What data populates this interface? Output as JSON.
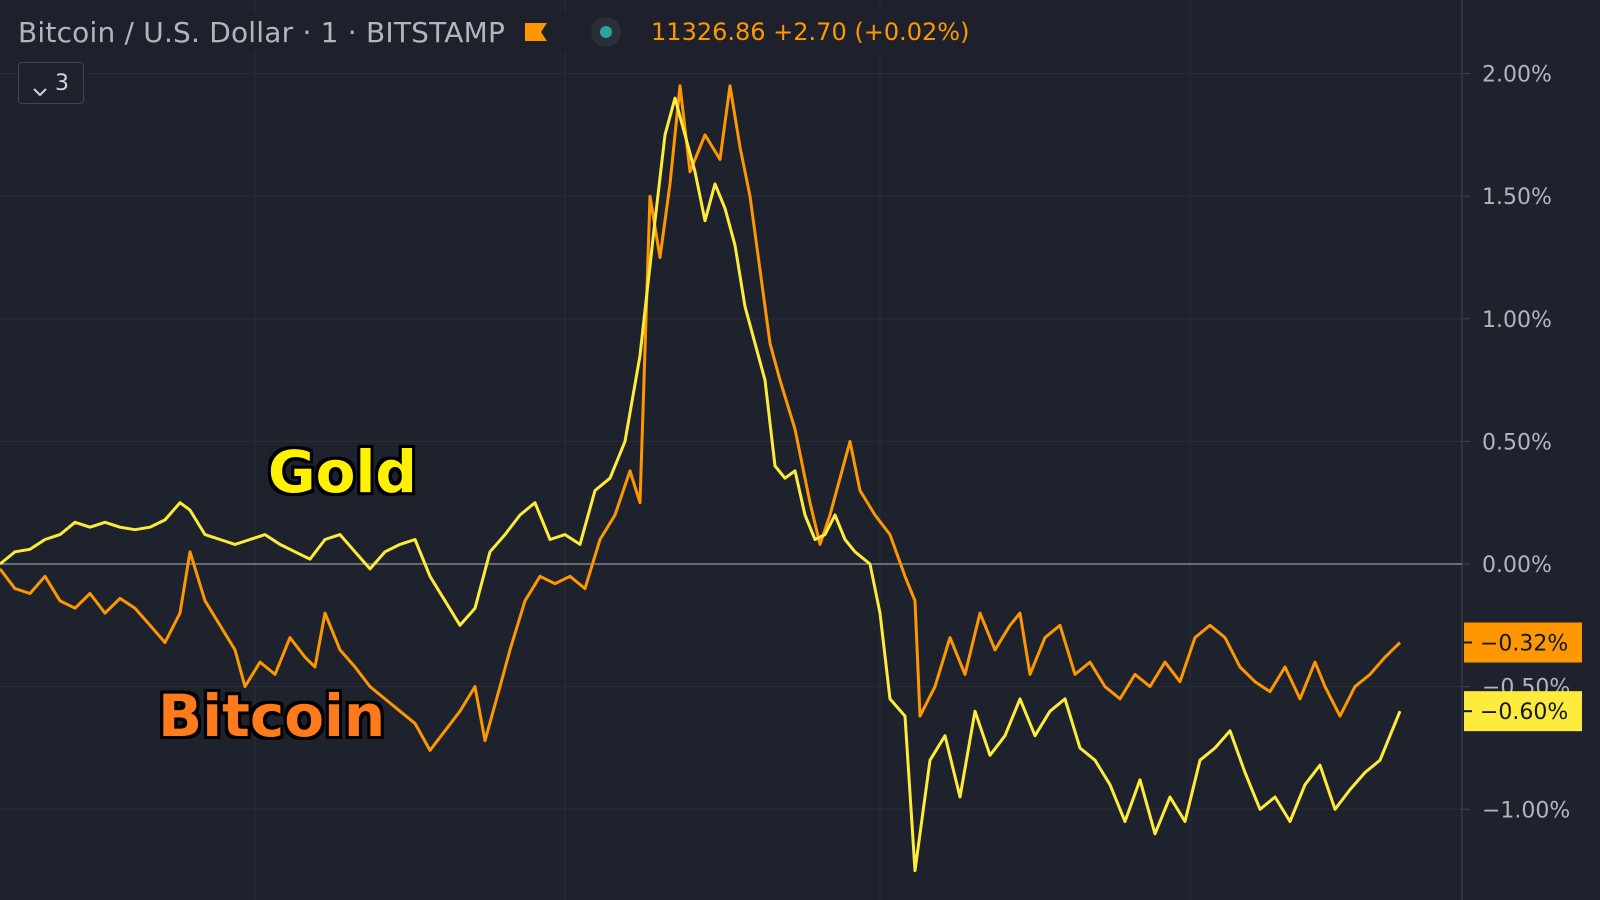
{
  "header": {
    "symbol_title": "Bitcoin / U.S. Dollar · 1 · BITSTAMP",
    "price_text": "11326.86 +2.70 (+0.02%)"
  },
  "collapse_button": {
    "label": "3"
  },
  "annotations": {
    "gold": "Gold",
    "bitcoin": "Bitcoin"
  },
  "colors": {
    "background": "#1e222d",
    "grid": "#2a2e39",
    "zero_line": "#b2b5be",
    "bitcoin": "#ff9800",
    "gold": "#ffeb3b",
    "status_dot": "#26a69a"
  },
  "icons": [
    "flag-icon",
    "status-dot-icon",
    "chevron-down-icon"
  ],
  "chart_data": {
    "type": "line",
    "title": "",
    "xlabel": "",
    "ylabel": "",
    "y_axis_position": "right",
    "y_unit": "%",
    "ylim": [
      -1.37,
      2.3
    ],
    "grid": true,
    "y_ticks": [
      {
        "value": 2.0,
        "label": "2.00%"
      },
      {
        "value": 1.5,
        "label": "1.50%"
      },
      {
        "value": 1.0,
        "label": "1.00%"
      },
      {
        "value": 0.5,
        "label": "0.50%"
      },
      {
        "value": 0.0,
        "label": "0.00%"
      },
      {
        "value": -0.5,
        "label": "−0.50%"
      },
      {
        "value": -1.0,
        "label": "−1.00%"
      }
    ],
    "x_range": [
      0,
      280
    ],
    "x_gridlines": [
      51,
      113,
      176,
      238
    ],
    "series": [
      {
        "name": "Bitcoin",
        "color": "#ff9800",
        "last_label": "−0.32%",
        "points": [
          [
            0,
            -0.02
          ],
          [
            3,
            -0.1
          ],
          [
            6,
            -0.12
          ],
          [
            9,
            -0.05
          ],
          [
            12,
            -0.15
          ],
          [
            15,
            -0.18
          ],
          [
            18,
            -0.12
          ],
          [
            21,
            -0.2
          ],
          [
            24,
            -0.14
          ],
          [
            27,
            -0.18
          ],
          [
            30,
            -0.25
          ],
          [
            33,
            -0.32
          ],
          [
            36,
            -0.2
          ],
          [
            38,
            0.05
          ],
          [
            41,
            -0.15
          ],
          [
            44,
            -0.25
          ],
          [
            47,
            -0.35
          ],
          [
            49,
            -0.5
          ],
          [
            52,
            -0.4
          ],
          [
            55,
            -0.45
          ],
          [
            58,
            -0.3
          ],
          [
            61,
            -0.38
          ],
          [
            63,
            -0.42
          ],
          [
            65,
            -0.2
          ],
          [
            68,
            -0.35
          ],
          [
            71,
            -0.42
          ],
          [
            74,
            -0.5
          ],
          [
            77,
            -0.55
          ],
          [
            80,
            -0.6
          ],
          [
            83,
            -0.65
          ],
          [
            86,
            -0.76
          ],
          [
            89,
            -0.68
          ],
          [
            92,
            -0.6
          ],
          [
            95,
            -0.5
          ],
          [
            97,
            -0.72
          ],
          [
            100,
            -0.5
          ],
          [
            102,
            -0.35
          ],
          [
            105,
            -0.15
          ],
          [
            108,
            -0.05
          ],
          [
            111,
            -0.08
          ],
          [
            114,
            -0.05
          ],
          [
            117,
            -0.1
          ],
          [
            120,
            0.1
          ],
          [
            123,
            0.2
          ],
          [
            126,
            0.38
          ],
          [
            128,
            0.25
          ],
          [
            130,
            1.5
          ],
          [
            132,
            1.25
          ],
          [
            134,
            1.55
          ],
          [
            136,
            1.95
          ],
          [
            138,
            1.6
          ],
          [
            141,
            1.75
          ],
          [
            144,
            1.65
          ],
          [
            146,
            1.95
          ],
          [
            148,
            1.7
          ],
          [
            150,
            1.5
          ],
          [
            152,
            1.2
          ],
          [
            154,
            0.9
          ],
          [
            156,
            0.75
          ],
          [
            159,
            0.55
          ],
          [
            162,
            0.25
          ],
          [
            164,
            0.08
          ],
          [
            166,
            0.2
          ],
          [
            168,
            0.35
          ],
          [
            170,
            0.5
          ],
          [
            172,
            0.3
          ],
          [
            175,
            0.2
          ],
          [
            178,
            0.12
          ],
          [
            181,
            -0.05
          ],
          [
            183,
            -0.15
          ],
          [
            184,
            -0.62
          ],
          [
            187,
            -0.5
          ],
          [
            190,
            -0.3
          ],
          [
            193,
            -0.45
          ],
          [
            196,
            -0.2
          ],
          [
            199,
            -0.35
          ],
          [
            202,
            -0.25
          ],
          [
            204,
            -0.2
          ],
          [
            206,
            -0.45
          ],
          [
            209,
            -0.3
          ],
          [
            212,
            -0.25
          ],
          [
            215,
            -0.45
          ],
          [
            218,
            -0.4
          ],
          [
            221,
            -0.5
          ],
          [
            224,
            -0.55
          ],
          [
            227,
            -0.45
          ],
          [
            230,
            -0.5
          ],
          [
            233,
            -0.4
          ],
          [
            236,
            -0.48
          ],
          [
            239,
            -0.3
          ],
          [
            242,
            -0.25
          ],
          [
            245,
            -0.3
          ],
          [
            248,
            -0.42
          ],
          [
            251,
            -0.48
          ],
          [
            254,
            -0.52
          ],
          [
            257,
            -0.42
          ],
          [
            260,
            -0.55
          ],
          [
            263,
            -0.4
          ],
          [
            265,
            -0.5
          ],
          [
            268,
            -0.62
          ],
          [
            271,
            -0.5
          ],
          [
            274,
            -0.45
          ],
          [
            277,
            -0.38
          ],
          [
            280,
            -0.32
          ]
        ]
      },
      {
        "name": "Gold",
        "color": "#ffeb3b",
        "last_label": "−0.60%",
        "points": [
          [
            0,
            0.0
          ],
          [
            3,
            0.05
          ],
          [
            6,
            0.06
          ],
          [
            9,
            0.1
          ],
          [
            12,
            0.12
          ],
          [
            15,
            0.17
          ],
          [
            18,
            0.15
          ],
          [
            21,
            0.17
          ],
          [
            24,
            0.15
          ],
          [
            27,
            0.14
          ],
          [
            30,
            0.15
          ],
          [
            33,
            0.18
          ],
          [
            36,
            0.25
          ],
          [
            38,
            0.22
          ],
          [
            41,
            0.12
          ],
          [
            44,
            0.1
          ],
          [
            47,
            0.08
          ],
          [
            50,
            0.1
          ],
          [
            53,
            0.12
          ],
          [
            56,
            0.08
          ],
          [
            59,
            0.05
          ],
          [
            62,
            0.02
          ],
          [
            65,
            0.1
          ],
          [
            68,
            0.12
          ],
          [
            71,
            0.05
          ],
          [
            74,
            -0.02
          ],
          [
            77,
            0.05
          ],
          [
            80,
            0.08
          ],
          [
            83,
            0.1
          ],
          [
            86,
            -0.05
          ],
          [
            89,
            -0.15
          ],
          [
            92,
            -0.25
          ],
          [
            95,
            -0.18
          ],
          [
            98,
            0.05
          ],
          [
            101,
            0.12
          ],
          [
            104,
            0.2
          ],
          [
            107,
            0.25
          ],
          [
            110,
            0.1
          ],
          [
            113,
            0.12
          ],
          [
            116,
            0.08
          ],
          [
            119,
            0.3
          ],
          [
            122,
            0.35
          ],
          [
            125,
            0.5
          ],
          [
            128,
            0.85
          ],
          [
            131,
            1.4
          ],
          [
            133,
            1.75
          ],
          [
            135,
            1.9
          ],
          [
            137,
            1.75
          ],
          [
            139,
            1.6
          ],
          [
            141,
            1.4
          ],
          [
            143,
            1.55
          ],
          [
            145,
            1.45
          ],
          [
            147,
            1.3
          ],
          [
            149,
            1.05
          ],
          [
            151,
            0.9
          ],
          [
            153,
            0.75
          ],
          [
            155,
            0.4
          ],
          [
            157,
            0.35
          ],
          [
            159,
            0.38
          ],
          [
            161,
            0.2
          ],
          [
            163,
            0.1
          ],
          [
            165,
            0.12
          ],
          [
            167,
            0.2
          ],
          [
            169,
            0.1
          ],
          [
            171,
            0.05
          ],
          [
            174,
            0.0
          ],
          [
            176,
            -0.2
          ],
          [
            178,
            -0.55
          ],
          [
            181,
            -0.62
          ],
          [
            183,
            -1.25
          ],
          [
            186,
            -0.8
          ],
          [
            189,
            -0.7
          ],
          [
            192,
            -0.95
          ],
          [
            195,
            -0.6
          ],
          [
            198,
            -0.78
          ],
          [
            201,
            -0.7
          ],
          [
            204,
            -0.55
          ],
          [
            207,
            -0.7
          ],
          [
            210,
            -0.6
          ],
          [
            213,
            -0.55
          ],
          [
            216,
            -0.75
          ],
          [
            219,
            -0.8
          ],
          [
            222,
            -0.9
          ],
          [
            225,
            -1.05
          ],
          [
            228,
            -0.88
          ],
          [
            231,
            -1.1
          ],
          [
            234,
            -0.95
          ],
          [
            237,
            -1.05
          ],
          [
            240,
            -0.8
          ],
          [
            243,
            -0.75
          ],
          [
            246,
            -0.68
          ],
          [
            249,
            -0.85
          ],
          [
            252,
            -1.0
          ],
          [
            255,
            -0.95
          ],
          [
            258,
            -1.05
          ],
          [
            261,
            -0.9
          ],
          [
            264,
            -0.82
          ],
          [
            267,
            -1.0
          ],
          [
            270,
            -0.92
          ],
          [
            273,
            -0.85
          ],
          [
            276,
            -0.8
          ],
          [
            278,
            -0.7
          ],
          [
            280,
            -0.6
          ]
        ]
      }
    ]
  }
}
